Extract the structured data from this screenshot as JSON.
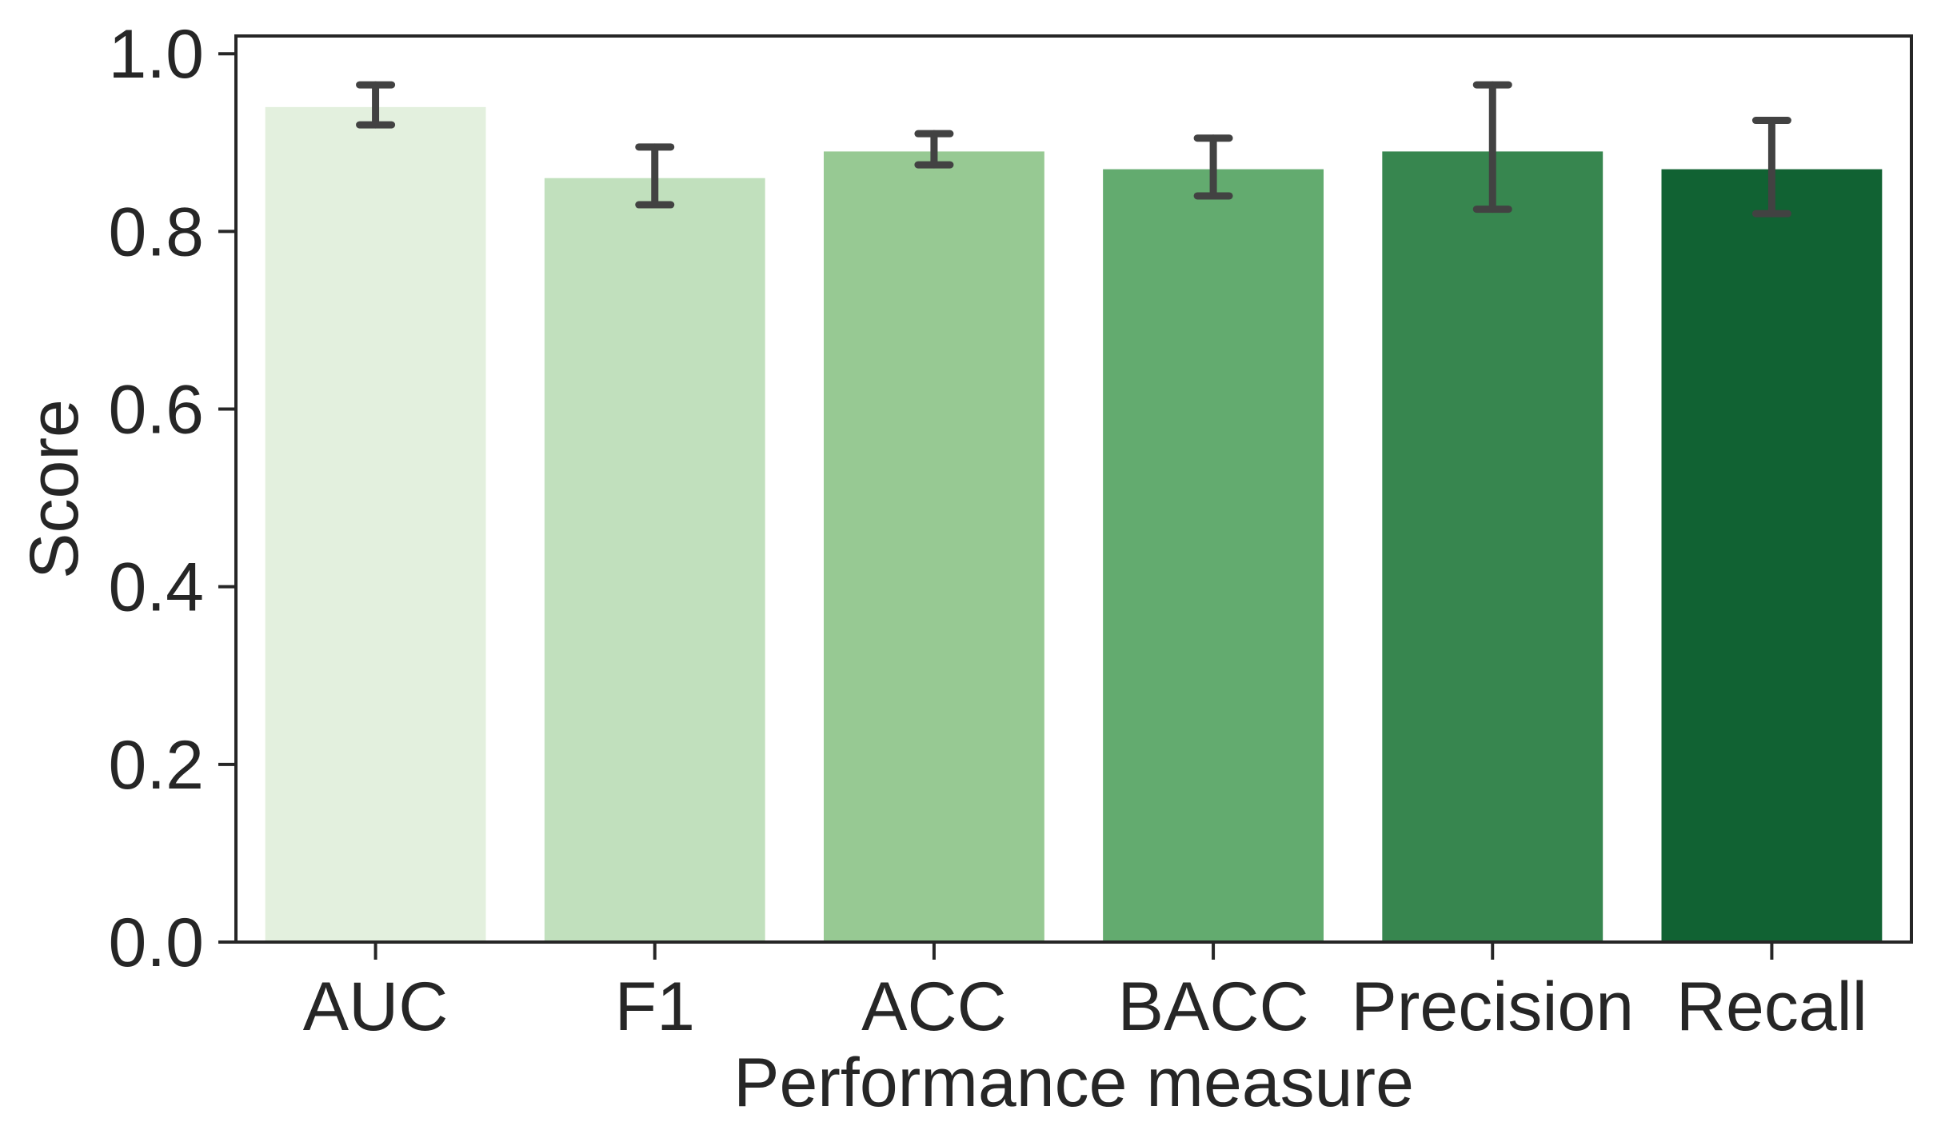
{
  "chart_data": {
    "type": "bar",
    "xlabel": "Performance measure",
    "ylabel": "Score",
    "categories": [
      "AUC",
      "F1",
      "ACC",
      "BACC",
      "Precision",
      "Recall"
    ],
    "values": [
      0.94,
      0.86,
      0.89,
      0.87,
      0.89,
      0.87
    ],
    "error_low": [
      0.92,
      0.83,
      0.875,
      0.84,
      0.825,
      0.82
    ],
    "error_high": [
      0.965,
      0.895,
      0.91,
      0.905,
      0.965,
      0.925
    ],
    "ylim": [
      0,
      1.02
    ],
    "yticks": [
      "0.0",
      "0.2",
      "0.4",
      "0.6",
      "0.8",
      "1.0"
    ],
    "grid": false,
    "colors": [
      "#e3f0de",
      "#c1e0bd",
      "#97c993",
      "#63ab6f",
      "#37864f",
      "#116233"
    ],
    "errorbar_color": "#424242",
    "axis_color": "#262626"
  }
}
